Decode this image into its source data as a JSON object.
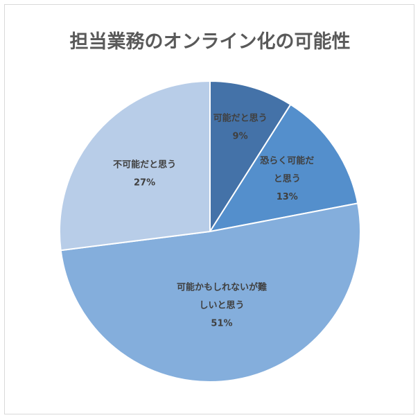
{
  "chart_data": {
    "type": "pie",
    "title": "担当業務のオンライン化の可能性",
    "slices": [
      {
        "label_lines": [
          "可能だと思う"
        ],
        "value": 9,
        "value_label": "9%",
        "color": "#4472a8"
      },
      {
        "label_lines": [
          "恐らく可能だ",
          "と思う"
        ],
        "value": 13,
        "value_label": "13%",
        "color": "#548fcc"
      },
      {
        "label_lines": [
          "可能かもしれないが難",
          "しいと思う"
        ],
        "value": 51,
        "value_label": "51%",
        "color": "#84aedc"
      },
      {
        "label_lines": [
          "不可能だと思う"
        ],
        "value": 27,
        "value_label": "27%",
        "color": "#b8cde8"
      }
    ],
    "legend": "none",
    "start_angle": "12 o'clock, clockwise"
  }
}
